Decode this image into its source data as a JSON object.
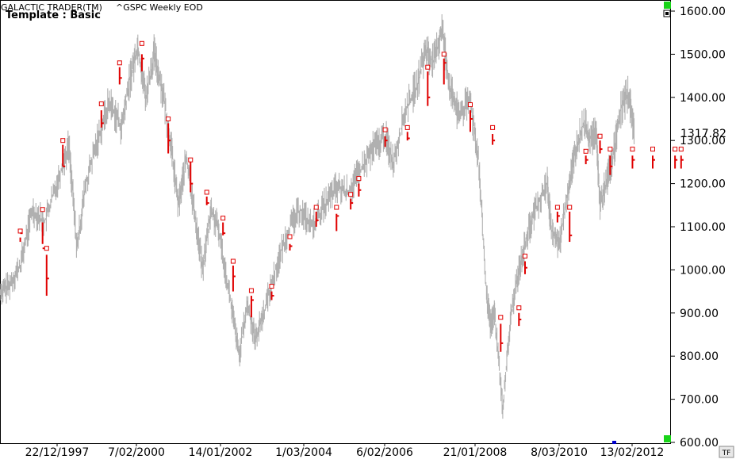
{
  "header": {
    "app": "GALACTIC TRADER(TM)",
    "symbol": "^GSPC Weekly EOD",
    "template": "Template : Basic"
  },
  "last_price_label": "1317.82",
  "tf_button": "TF",
  "colors": {
    "price": "#b0b0b0",
    "marker": "#e00000",
    "ok": "#19d419",
    "cursor": "#0000cc"
  },
  "chart_data": {
    "type": "line",
    "x_ticks": [
      "22/12/1997",
      "7/02/2000",
      "14/01/2002",
      "1/03/2004",
      "6/02/2006",
      "21/01/2008",
      "8/03/2010",
      "13/02/2012"
    ],
    "y_ticks": [
      "600.00",
      "700.00",
      "800.00",
      "900.00",
      "1000.00",
      "1100.00",
      "1200.00",
      "1300.00",
      "1400.00",
      "1500.00",
      "1600.00"
    ],
    "ylim": [
      600,
      1600
    ],
    "xlim": [
      1996.8,
      2013.0
    ],
    "last_value": 1317.82,
    "price_path": [
      [
        1996.8,
        950
      ],
      [
        1997.0,
        960
      ],
      [
        1997.3,
        1010
      ],
      [
        1997.6,
        1140
      ],
      [
        1997.9,
        1110
      ],
      [
        1998.2,
        1200
      ],
      [
        1998.5,
        1290
      ],
      [
        1998.7,
        1050
      ],
      [
        1998.9,
        1190
      ],
      [
        1999.2,
        1300
      ],
      [
        1999.5,
        1390
      ],
      [
        1999.8,
        1330
      ],
      [
        2000.0,
        1440
      ],
      [
        2000.2,
        1520
      ],
      [
        2000.4,
        1400
      ],
      [
        2000.6,
        1500
      ],
      [
        2000.8,
        1420
      ],
      [
        2001.0,
        1300
      ],
      [
        2001.2,
        1150
      ],
      [
        2001.4,
        1260
      ],
      [
        2001.6,
        1130
      ],
      [
        2001.8,
        1000
      ],
      [
        2002.0,
        1140
      ],
      [
        2002.2,
        1090
      ],
      [
        2002.5,
        920
      ],
      [
        2002.7,
        800
      ],
      [
        2002.9,
        920
      ],
      [
        2003.1,
        840
      ],
      [
        2003.3,
        900
      ],
      [
        2003.6,
        1000
      ],
      [
        2003.9,
        1090
      ],
      [
        2004.2,
        1140
      ],
      [
        2004.5,
        1100
      ],
      [
        2004.8,
        1150
      ],
      [
        2005.1,
        1190
      ],
      [
        2005.4,
        1180
      ],
      [
        2005.7,
        1230
      ],
      [
        2006.0,
        1280
      ],
      [
        2006.3,
        1310
      ],
      [
        2006.5,
        1250
      ],
      [
        2006.8,
        1370
      ],
      [
        2007.1,
        1430
      ],
      [
        2007.3,
        1510
      ],
      [
        2007.5,
        1480
      ],
      [
        2007.7,
        1560
      ],
      [
        2007.9,
        1420
      ],
      [
        2008.1,
        1360
      ],
      [
        2008.4,
        1390
      ],
      [
        2008.6,
        1260
      ],
      [
        2008.8,
        940
      ],
      [
        2008.9,
        870
      ],
      [
        2009.0,
        900
      ],
      [
        2009.2,
        680
      ],
      [
        2009.4,
        890
      ],
      [
        2009.6,
        1000
      ],
      [
        2009.8,
        1080
      ],
      [
        2010.0,
        1140
      ],
      [
        2010.3,
        1200
      ],
      [
        2010.4,
        1090
      ],
      [
        2010.6,
        1060
      ],
      [
        2010.8,
        1180
      ],
      [
        2011.0,
        1280
      ],
      [
        2011.2,
        1340
      ],
      [
        2011.4,
        1300
      ],
      [
        2011.5,
        1320
      ],
      [
        2011.6,
        1150
      ],
      [
        2011.8,
        1220
      ],
      [
        2011.9,
        1250
      ],
      [
        2012.1,
        1370
      ],
      [
        2012.3,
        1410
      ],
      [
        2012.45,
        1320
      ]
    ],
    "forecast_markers": [
      [
        1997.3,
        1075,
        1065,
        1090,
        1085
      ],
      [
        1997.85,
        1110,
        1060,
        1140,
        1050
      ],
      [
        1997.95,
        1035,
        940,
        1050,
        980
      ],
      [
        1998.35,
        1290,
        1240,
        1300,
        1240
      ],
      [
        1999.3,
        1370,
        1330,
        1385,
        1340
      ],
      [
        1999.75,
        1470,
        1430,
        1480,
        1445
      ],
      [
        2000.3,
        1500,
        1460,
        1525,
        1490
      ],
      [
        2000.95,
        1340,
        1270,
        1350,
        1300
      ],
      [
        2001.5,
        1250,
        1180,
        1255,
        1200
      ],
      [
        2001.9,
        1170,
        1150,
        1180,
        1155
      ],
      [
        2002.3,
        1110,
        1080,
        1120,
        1085
      ],
      [
        2002.55,
        1010,
        950,
        1020,
        985
      ],
      [
        2003.0,
        940,
        890,
        952,
        930
      ],
      [
        2003.5,
        950,
        930,
        962,
        940
      ],
      [
        2003.95,
        1060,
        1045,
        1077,
        1055
      ],
      [
        2004.6,
        1135,
        1100,
        1145,
        1115
      ],
      [
        2005.1,
        1130,
        1090,
        1145,
        1125
      ],
      [
        2005.45,
        1165,
        1140,
        1175,
        1155
      ],
      [
        2005.65,
        1200,
        1170,
        1212,
        1185
      ],
      [
        2006.3,
        1310,
        1285,
        1325,
        1300
      ],
      [
        2006.85,
        1320,
        1300,
        1330,
        1305
      ],
      [
        2007.35,
        1460,
        1380,
        1470,
        1400
      ],
      [
        2007.75,
        1490,
        1430,
        1500,
        1480
      ],
      [
        2008.4,
        1370,
        1320,
        1383,
        1350
      ],
      [
        2008.95,
        1315,
        1290,
        1330,
        1300
      ],
      [
        2009.15,
        875,
        810,
        890,
        830
      ],
      [
        2009.6,
        900,
        870,
        912,
        885
      ],
      [
        2009.75,
        1020,
        990,
        1032,
        1005
      ],
      [
        2010.55,
        1135,
        1110,
        1145,
        1125
      ],
      [
        2010.85,
        1135,
        1065,
        1145,
        1080
      ],
      [
        2011.25,
        1265,
        1245,
        1275,
        1255
      ],
      [
        2011.6,
        1300,
        1270,
        1310,
        1280
      ],
      [
        2011.85,
        1265,
        1220,
        1280,
        1240
      ],
      [
        2012.4,
        1265,
        1235,
        1280,
        1255
      ],
      [
        2012.9,
        1265,
        1235,
        1280,
        1255
      ],
      [
        2013.45,
        1265,
        1235,
        1280,
        1255
      ],
      [
        2013.6,
        1265,
        1235,
        1280,
        1255
      ]
    ]
  }
}
